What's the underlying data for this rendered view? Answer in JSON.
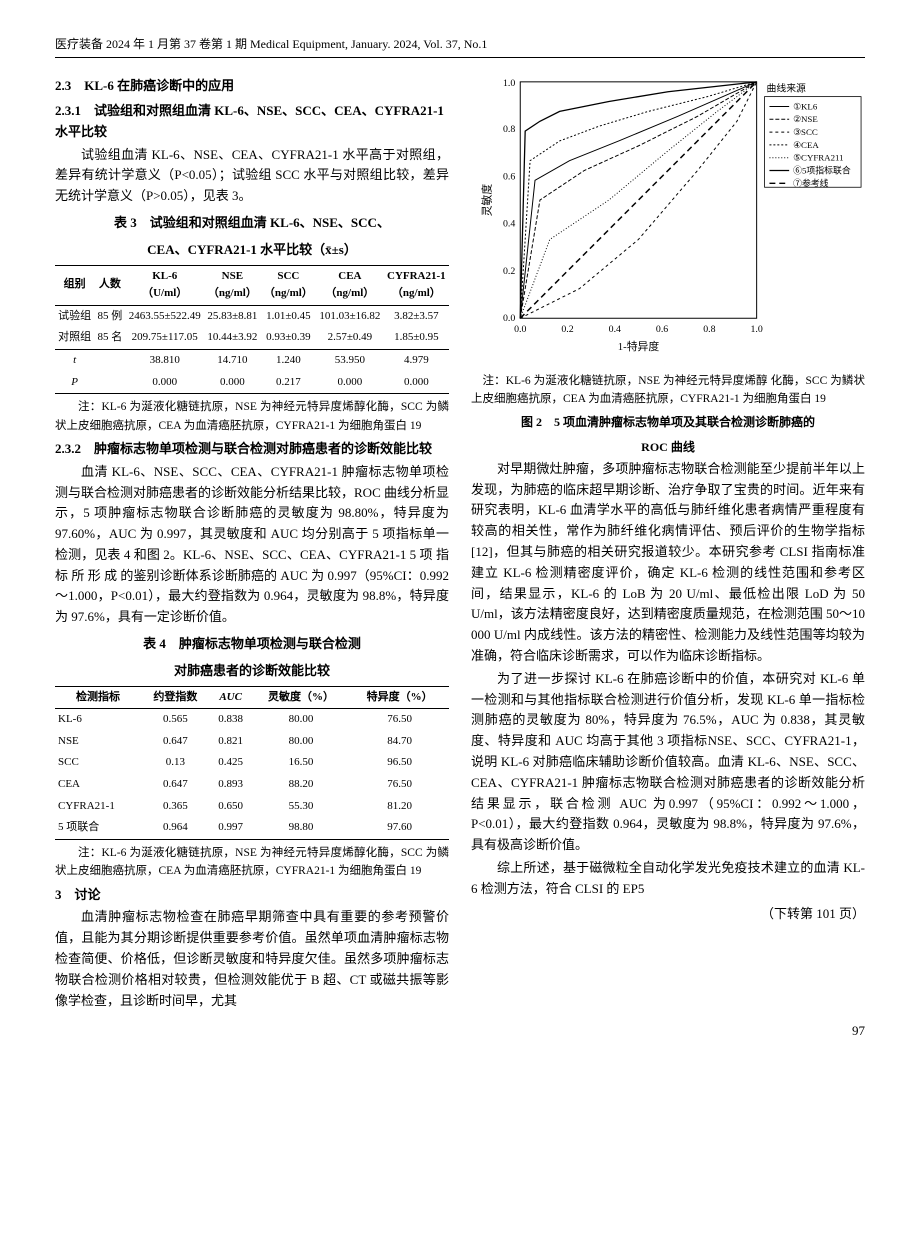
{
  "header": "医疗装备 2024 年 1 月第 37 卷第 1 期 Medical Equipment, January. 2024, Vol. 37, No.1",
  "left": {
    "h23": "2.3　KL-6 在肺癌诊断中的应用",
    "h231": "2.3.1　试验组和对照组血清 KL-6、NSE、SCC、CEA、CYFRA21-1 水平比较",
    "p231": "试验组血清 KL-6、NSE、CEA、CYFRA21-1 水平高于对照组，差异有统计学意义（P<0.05）；试验组 SCC 水平与对照组比较，差异无统计学意义（P>0.05），见表 3。",
    "tbl3_title_a": "表 3　试验组和对照组血清 KL-6、NSE、SCC、",
    "tbl3_title_b": "CEA、CYFRA21-1 水平比较（x̄±s）",
    "tbl3": {
      "head": [
        "组别",
        "人数",
        "KL-6\n（U/ml）",
        "NSE\n（ng/ml）",
        "SCC\n（ng/ml）",
        "CEA\n（ng/ml）",
        "CYFRA21-1\n（ng/ml）"
      ],
      "rows": [
        [
          "试验组",
          "85 例",
          "2463.55±522.49",
          "25.83±8.81",
          "1.01±0.45",
          "101.03±16.82",
          "3.82±3.57"
        ],
        [
          "对照组",
          "85 名",
          "209.75±117.05",
          "10.44±3.92",
          "0.93±0.39",
          "2.57±0.49",
          "1.85±0.95"
        ]
      ],
      "trow": [
        "t",
        "",
        "38.810",
        "14.710",
        "1.240",
        "53.950",
        "4.979"
      ],
      "prow": [
        "P",
        "",
        "0.000",
        "0.000",
        "0.217",
        "0.000",
        "0.000"
      ]
    },
    "note3": "注：KL-6 为涎液化糖链抗原，NSE 为神经元特异度烯醇化酶，SCC 为鳞状上皮细胞癌抗原，CEA 为血清癌胚抗原，CYFRA21-1 为细胞角蛋白 19",
    "h232": "2.3.2　肿瘤标志物单项检测与联合检测对肺癌患者的诊断效能比较",
    "p232": "血清 KL-6、NSE、SCC、CEA、CYFRA21-1 肿瘤标志物单项检测与联合检测对肺癌患者的诊断效能分析结果比较，ROC 曲线分析显示，5 项肿瘤标志物联合诊断肺癌的灵敏度为 98.80%，特异度为 97.60%，AUC 为 0.997，其灵敏度和 AUC 均分别高于 5 项指标单一检测，见表 4 和图 2。KL-6、NSE、SCC、CEA、CYFRA21-1 5 项 指 标 所 形 成 的鉴别诊断体系诊断肺癌的 AUC 为 0.997（95%CI：0.992～1.000，P<0.01），最大约登指数为 0.964，灵敏度为 98.8%，特异度为 97.6%，具有一定诊断价值。",
    "tbl4_title_a": "表 4　肿瘤标志物单项检测与联合检测",
    "tbl4_title_b": "对肺癌患者的诊断效能比较",
    "tbl4": {
      "head": [
        "检测指标",
        "约登指数",
        "AUC",
        "灵敏度（%）",
        "特异度（%）"
      ],
      "rows": [
        [
          "KL-6",
          "0.565",
          "0.838",
          "80.00",
          "76.50"
        ],
        [
          "NSE",
          "0.647",
          "0.821",
          "80.00",
          "84.70"
        ],
        [
          "SCC",
          "0.13",
          "0.425",
          "16.50",
          "96.50"
        ],
        [
          "CEA",
          "0.647",
          "0.893",
          "88.20",
          "76.50"
        ],
        [
          "CYFRA21-1",
          "0.365",
          "0.650",
          "55.30",
          "81.20"
        ],
        [
          "5 项联合",
          "0.964",
          "0.997",
          "98.80",
          "97.60"
        ]
      ]
    },
    "note4": "注：KL-6 为涎液化糖链抗原，NSE 为神经元特异度烯醇化酶，SCC 为鳞状上皮细胞癌抗原，CEA 为血清癌胚抗原，CYFRA21-1 为细胞角蛋白 19",
    "h3": "3　讨论",
    "p3": "血清肿瘤标志物检查在肺癌早期筛查中具有重要的参考预警价值，且能为其分期诊断提供重要参考价值。虽然单项血清肿瘤标志物检查简便、价格低，但诊断灵敏度和特异度欠佳。虽然多项肿瘤标志物联合检测价格相对较贵，但检测效能优于 B 超、CT 或磁共振等影像学检查，且诊断时间早，尤其"
  },
  "right": {
    "roc": {
      "xlabel": "1-特异度",
      "ylabel": "灵敏度",
      "legend_title": "曲线来源",
      "legend": [
        "①KL6",
        "②NSE",
        "③SCC",
        "④CEA",
        "⑤CYFRA211",
        "⑥5项指标联合",
        "⑦参考线"
      ],
      "ticks": [
        "0.0",
        "0.2",
        "0.4",
        "0.6",
        "0.8",
        "1.0"
      ],
      "colors": {
        "axis": "#000",
        "grid": "#fff",
        "bg": "#fff"
      }
    },
    "roc_note": "注：KL-6 为涎液化糖链抗原，NSE 为神经元特异度烯醇 化酶，SCC 为鳞状上皮细胞癌抗原，CEA 为血清癌胚抗原，CYFRA21-1 为细胞角蛋白 19",
    "fig2_a": "图 2　5 项血清肿瘤标志物单项及其联合检测诊断肺癌的",
    "fig2_b": "ROC 曲线",
    "para1": "对早期微灶肿瘤，多项肿瘤标志物联合检测能至少提前半年以上发现，为肺癌的临床超早期诊断、治疗争取了宝贵的时间。近年来有研究表明，KL-6 血清学水平的高低与肺纤维化患者病情严重程度有较高的相关性，常作为肺纤维化病情评估、预后评价的生物学指标 [12]，但其与肺癌的相关研究报道较少。本研究参考 CLSI 指南标准建立 KL-6 检测精密度评价，确定 KL-6 检测的线性范围和参考区间，结果显示，KL-6 的 LoB 为 20 U/ml、最低检出限 LoD 为 50 U/ml，该方法精密度良好，达到精密度质量规范，在检测范围 50～10 000 U/ml 内成线性。该方法的精密性、检测能力及线性范围等均较为准确，符合临床诊断需求，可以作为临床诊断指标。",
    "para2": "为了进一步探讨 KL-6 在肺癌诊断中的价值，本研究对 KL-6 单一检测和与其他指标联合检测进行价值分析，发现 KL-6 单一指标检测肺癌的灵敏度为 80%，特异度为 76.5%，AUC 为 0.838，其灵敏度、特异度和 AUC 均高于其他 3 项指标NSE、SCC、CYFRA21-1，说明 KL-6 对肺癌临床辅助诊断价值较高。血清 KL-6、NSE、SCC、CEA、CYFRA21-1 肿瘤标志物联合检测对肺癌患者的诊断效能分析结果显示，联合检测 AUC 为0.997（95%CI：0.992～1.000，P<0.01），最大约登指数 0.964，灵敏度为 98.8%，特异度为 97.6%，具有极高诊断价值。",
    "para3": "综上所述，基于磁微粒全自动化学发光免疫技术建立的血清 KL-6 检测方法，符合 CLSI 的 EP5",
    "cont": "（下转第 101 页）"
  },
  "pagenum": "97"
}
